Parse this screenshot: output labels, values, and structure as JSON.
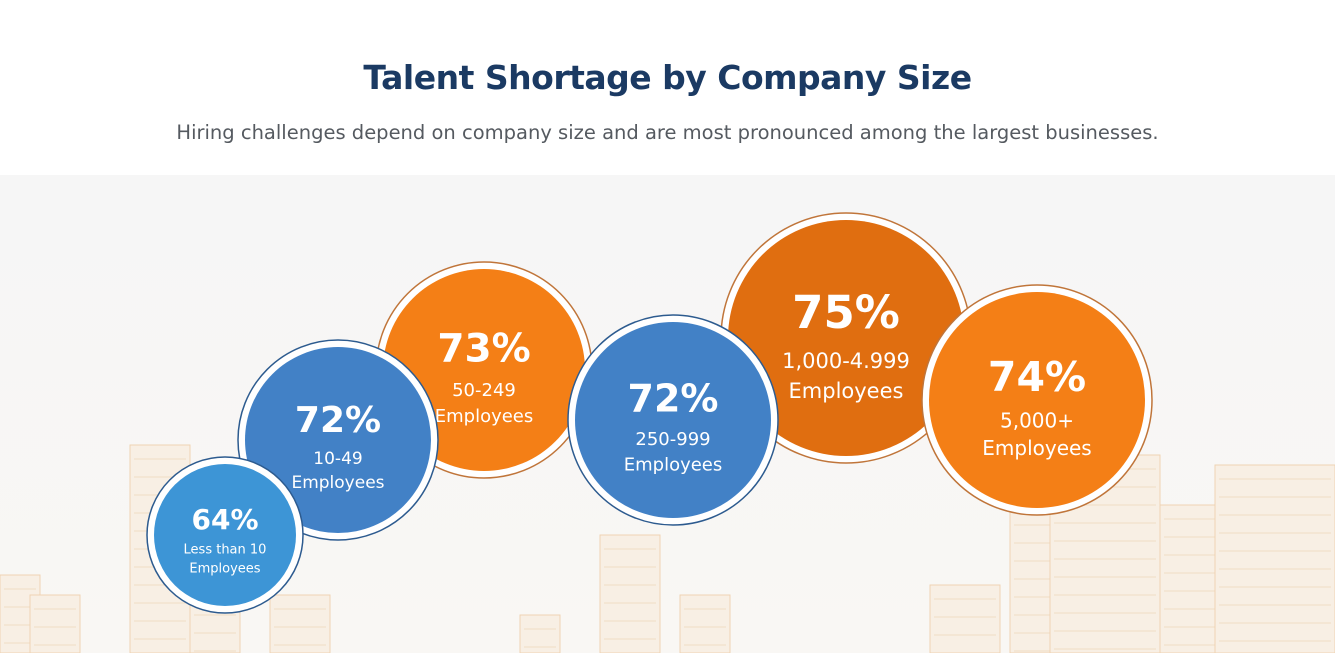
{
  "header": {
    "title": "Talent Shortage by Company Size",
    "subtitle": "Hiring challenges depend on company size and are most pronounced among the largest businesses."
  },
  "colors": {
    "blue_light": "#3d95d6",
    "blue": "#4080c4",
    "orange": "#f47f16",
    "orange_dark": "#e06e10",
    "title": "#1b3a63"
  },
  "chart_data": {
    "type": "bubble",
    "title": "Talent Shortage by Company Size",
    "unit": "%",
    "categories": [
      "Less than 10 Employees",
      "10-49 Employees",
      "50-249 Employees",
      "250-999 Employees",
      "1,000-4.999 Employees",
      "5,000+ Employees"
    ],
    "values": [
      64,
      72,
      73,
      72,
      75,
      74
    ],
    "items": [
      {
        "value_label": "64%",
        "line1": "Less than 10",
        "line2": "Employees",
        "color": "#3d95d6"
      },
      {
        "value_label": "72%",
        "line1": "10-49",
        "line2": "Employees",
        "color": "#4281c6"
      },
      {
        "value_label": "73%",
        "line1": "50-249",
        "line2": "Employees",
        "color": "#f47f16"
      },
      {
        "value_label": "72%",
        "line1": "250-999",
        "line2": "Employees",
        "color": "#4281c6"
      },
      {
        "value_label": "75%",
        "line1": "1,000-4.999",
        "line2": "Employees",
        "color": "#e06e10"
      },
      {
        "value_label": "74%",
        "line1": "5,000+",
        "line2": "Employees",
        "color": "#f47f16"
      }
    ]
  }
}
